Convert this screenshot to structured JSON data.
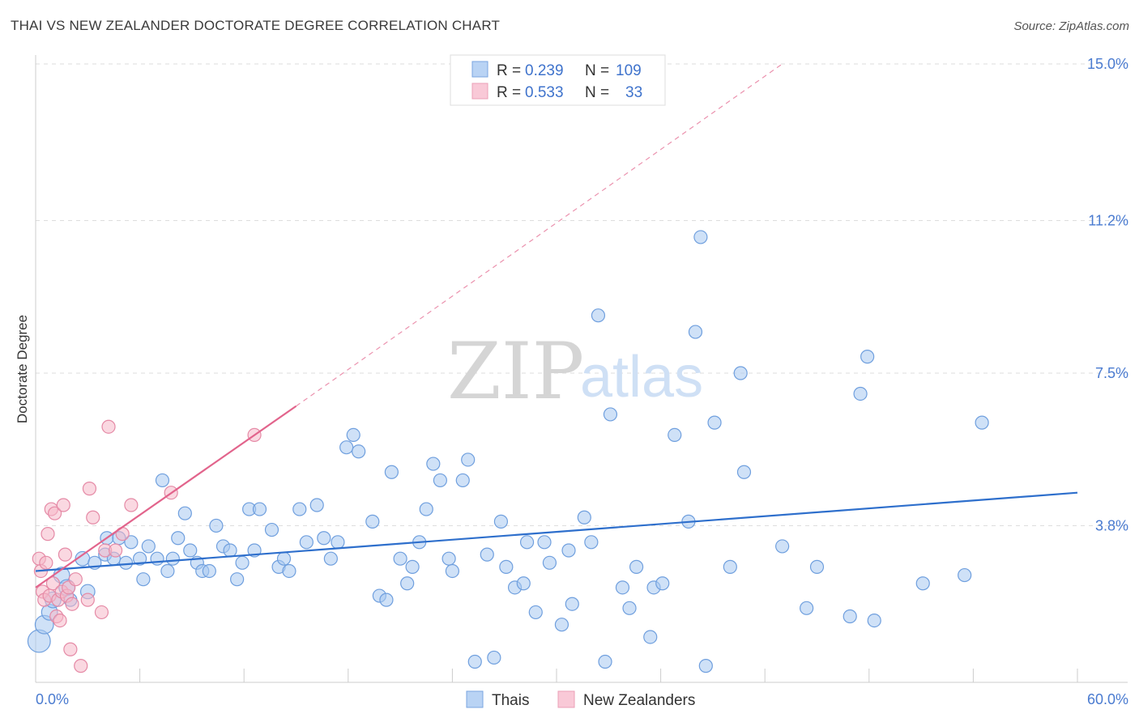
{
  "title": "THAI VS NEW ZEALANDER DOCTORATE DEGREE CORRELATION CHART",
  "source": "Source: ZipAtlas.com",
  "watermark": {
    "zip": "ZIP",
    "atlas": "atlas"
  },
  "colors": {
    "thais_fill": "#a8c8f0",
    "thais_stroke": "#6f9fde",
    "thais_line": "#2e6fcc",
    "nz_fill": "#f6b8c9",
    "nz_stroke": "#e58aa6",
    "nz_line": "#e2648c",
    "tick_text": "#4a7bd0",
    "grid": "#dddddd"
  },
  "legend": {
    "rows": [
      {
        "r_label": "R =",
        "r_value": "0.239",
        "n_label": "N =",
        "n_value": "109",
        "series": "thais"
      },
      {
        "r_label": "R =",
        "r_value": "0.533",
        "n_label": "N =",
        "n_value": "33",
        "series": "nz"
      }
    ]
  },
  "chart_data": {
    "type": "scatter",
    "xlabel": "",
    "ylabel": "Doctorate Degree",
    "xlim": [
      0,
      60
    ],
    "ylim": [
      0,
      15
    ],
    "x_tick_labels": [
      {
        "value": 0,
        "label": "0.0%"
      },
      {
        "value": 60,
        "label": "60.0%"
      }
    ],
    "y_tick_labels": [
      {
        "value": 3.8,
        "label": "3.8%"
      },
      {
        "value": 7.5,
        "label": "7.5%"
      },
      {
        "value": 11.2,
        "label": "11.2%"
      },
      {
        "value": 15.0,
        "label": "15.0%"
      }
    ],
    "series": [
      {
        "name": "Thais",
        "key": "thais",
        "trend": {
          "x": [
            0,
            60
          ],
          "y": [
            2.7,
            4.6
          ]
        },
        "points": [
          [
            0.2,
            1.0,
            3
          ],
          [
            0.5,
            1.4,
            2
          ],
          [
            0.8,
            1.7,
            1.5
          ],
          [
            1.0,
            2.0,
            1.5
          ],
          [
            1.5,
            2.6,
            1.5
          ],
          [
            1.8,
            2.3,
            1.5
          ],
          [
            2.0,
            2.0,
            1
          ],
          [
            3.0,
            2.2,
            1.2
          ],
          [
            2.7,
            3.0,
            1.2
          ],
          [
            3.4,
            2.9,
            1
          ],
          [
            4.0,
            3.1,
            1
          ],
          [
            4.1,
            3.5,
            1
          ],
          [
            4.5,
            3.0,
            1
          ],
          [
            4.8,
            3.5,
            1
          ],
          [
            5.2,
            2.9,
            1
          ],
          [
            5.5,
            3.4,
            1
          ],
          [
            6.0,
            3.0,
            1
          ],
          [
            6.2,
            2.5,
            1
          ],
          [
            6.5,
            3.3,
            1
          ],
          [
            7.0,
            3.0,
            1
          ],
          [
            7.3,
            4.9,
            1
          ],
          [
            7.6,
            2.7,
            1
          ],
          [
            7.9,
            3.0,
            1
          ],
          [
            8.2,
            3.5,
            1
          ],
          [
            8.6,
            4.1,
            1
          ],
          [
            8.9,
            3.2,
            1
          ],
          [
            9.3,
            2.9,
            1
          ],
          [
            9.6,
            2.7,
            1
          ],
          [
            10.0,
            2.7,
            1
          ],
          [
            10.4,
            3.8,
            1
          ],
          [
            10.8,
            3.3,
            1
          ],
          [
            11.2,
            3.2,
            1
          ],
          [
            11.6,
            2.5,
            1
          ],
          [
            11.9,
            2.9,
            1
          ],
          [
            12.3,
            4.2,
            1
          ],
          [
            12.9,
            4.2,
            1
          ],
          [
            12.6,
            3.2,
            1
          ],
          [
            13.6,
            3.7,
            1
          ],
          [
            14.0,
            2.8,
            1
          ],
          [
            14.3,
            3.0,
            1
          ],
          [
            14.6,
            2.7,
            1
          ],
          [
            15.2,
            4.2,
            1
          ],
          [
            15.6,
            3.4,
            1
          ],
          [
            16.2,
            4.3,
            1
          ],
          [
            16.6,
            3.5,
            1
          ],
          [
            17.0,
            3.0,
            1
          ],
          [
            17.4,
            3.4,
            1
          ],
          [
            17.9,
            5.7,
            1
          ],
          [
            18.3,
            6.0,
            1
          ],
          [
            18.6,
            5.6,
            1
          ],
          [
            19.4,
            3.9,
            1
          ],
          [
            19.8,
            2.1,
            1
          ],
          [
            20.2,
            2.0,
            1
          ],
          [
            20.5,
            5.1,
            1
          ],
          [
            21.0,
            3.0,
            1
          ],
          [
            21.4,
            2.4,
            1
          ],
          [
            21.7,
            2.8,
            1
          ],
          [
            22.1,
            3.4,
            1
          ],
          [
            22.5,
            4.2,
            1
          ],
          [
            22.9,
            5.3,
            1
          ],
          [
            23.3,
            4.9,
            1
          ],
          [
            23.8,
            3.0,
            1
          ],
          [
            24.0,
            2.7,
            1
          ],
          [
            24.6,
            4.9,
            1
          ],
          [
            24.9,
            5.4,
            1
          ],
          [
            25.3,
            0.5,
            1
          ],
          [
            26.0,
            3.1,
            1
          ],
          [
            26.4,
            0.6,
            1
          ],
          [
            26.8,
            3.9,
            1
          ],
          [
            27.1,
            2.8,
            1
          ],
          [
            27.6,
            2.3,
            1
          ],
          [
            28.1,
            2.4,
            1
          ],
          [
            28.3,
            3.4,
            1
          ],
          [
            28.8,
            1.7,
            1
          ],
          [
            29.3,
            3.4,
            1
          ],
          [
            29.6,
            2.9,
            1
          ],
          [
            30.3,
            1.4,
            1
          ],
          [
            30.7,
            3.2,
            1
          ],
          [
            30.9,
            1.9,
            1
          ],
          [
            31.6,
            4.0,
            1
          ],
          [
            32.0,
            3.4,
            1
          ],
          [
            32.4,
            8.9,
            1
          ],
          [
            32.8,
            0.5,
            1
          ],
          [
            33.1,
            6.5,
            1
          ],
          [
            33.8,
            2.3,
            1
          ],
          [
            34.2,
            1.8,
            1
          ],
          [
            34.6,
            2.8,
            1
          ],
          [
            35.4,
            1.1,
            1
          ],
          [
            35.6,
            2.3,
            1
          ],
          [
            36.1,
            2.4,
            1
          ],
          [
            36.8,
            6.0,
            1
          ],
          [
            37.6,
            3.9,
            1
          ],
          [
            38.0,
            8.5,
            1
          ],
          [
            38.3,
            10.8,
            1
          ],
          [
            38.6,
            0.4,
            1
          ],
          [
            39.1,
            6.3,
            1
          ],
          [
            40.0,
            2.8,
            1
          ],
          [
            40.6,
            7.5,
            1
          ],
          [
            40.8,
            5.1,
            1
          ],
          [
            43.0,
            3.3,
            1
          ],
          [
            44.4,
            1.8,
            1
          ],
          [
            46.9,
            1.6,
            1
          ],
          [
            47.5,
            7.0,
            1
          ],
          [
            47.9,
            7.9,
            1
          ],
          [
            48.3,
            1.5,
            1
          ],
          [
            51.1,
            2.4,
            1
          ],
          [
            53.5,
            2.6,
            1
          ],
          [
            54.5,
            6.3,
            1
          ],
          [
            45.0,
            2.8,
            1
          ]
        ]
      },
      {
        "name": "New Zealanders",
        "key": "nz",
        "trend": {
          "x": [
            0,
            15
          ],
          "y": [
            2.3,
            6.7
          ],
          "dashed_to": {
            "x": 43,
            "y": 15
          }
        },
        "points": [
          [
            0.2,
            3.0,
            1
          ],
          [
            0.3,
            2.7,
            1
          ],
          [
            0.4,
            2.2,
            1
          ],
          [
            0.5,
            2.0,
            1
          ],
          [
            0.6,
            2.9,
            1
          ],
          [
            0.7,
            3.6,
            1
          ],
          [
            0.8,
            2.1,
            1
          ],
          [
            0.9,
            4.2,
            1
          ],
          [
            1.0,
            2.4,
            1
          ],
          [
            1.1,
            4.1,
            1
          ],
          [
            1.2,
            1.6,
            1
          ],
          [
            1.3,
            2.0,
            1
          ],
          [
            1.4,
            1.5,
            1
          ],
          [
            1.5,
            2.2,
            1
          ],
          [
            1.6,
            4.3,
            1
          ],
          [
            1.7,
            3.1,
            1
          ],
          [
            1.8,
            2.1,
            1
          ],
          [
            1.9,
            2.3,
            1
          ],
          [
            2.0,
            0.8,
            1
          ],
          [
            2.1,
            1.9,
            1
          ],
          [
            2.3,
            2.5,
            1
          ],
          [
            2.6,
            0.4,
            1
          ],
          [
            3.0,
            2.0,
            1
          ],
          [
            3.1,
            4.7,
            1
          ],
          [
            3.3,
            4.0,
            1
          ],
          [
            3.8,
            1.7,
            1
          ],
          [
            4.0,
            3.2,
            1
          ],
          [
            4.2,
            6.2,
            1
          ],
          [
            4.6,
            3.2,
            1
          ],
          [
            5.0,
            3.6,
            1
          ],
          [
            5.5,
            4.3,
            1
          ],
          [
            7.8,
            4.6,
            1
          ],
          [
            12.6,
            6.0,
            1
          ]
        ]
      }
    ],
    "legend_entries": [
      "Thais",
      "New Zealanders"
    ],
    "grid": true,
    "legend_position": "top-center"
  }
}
